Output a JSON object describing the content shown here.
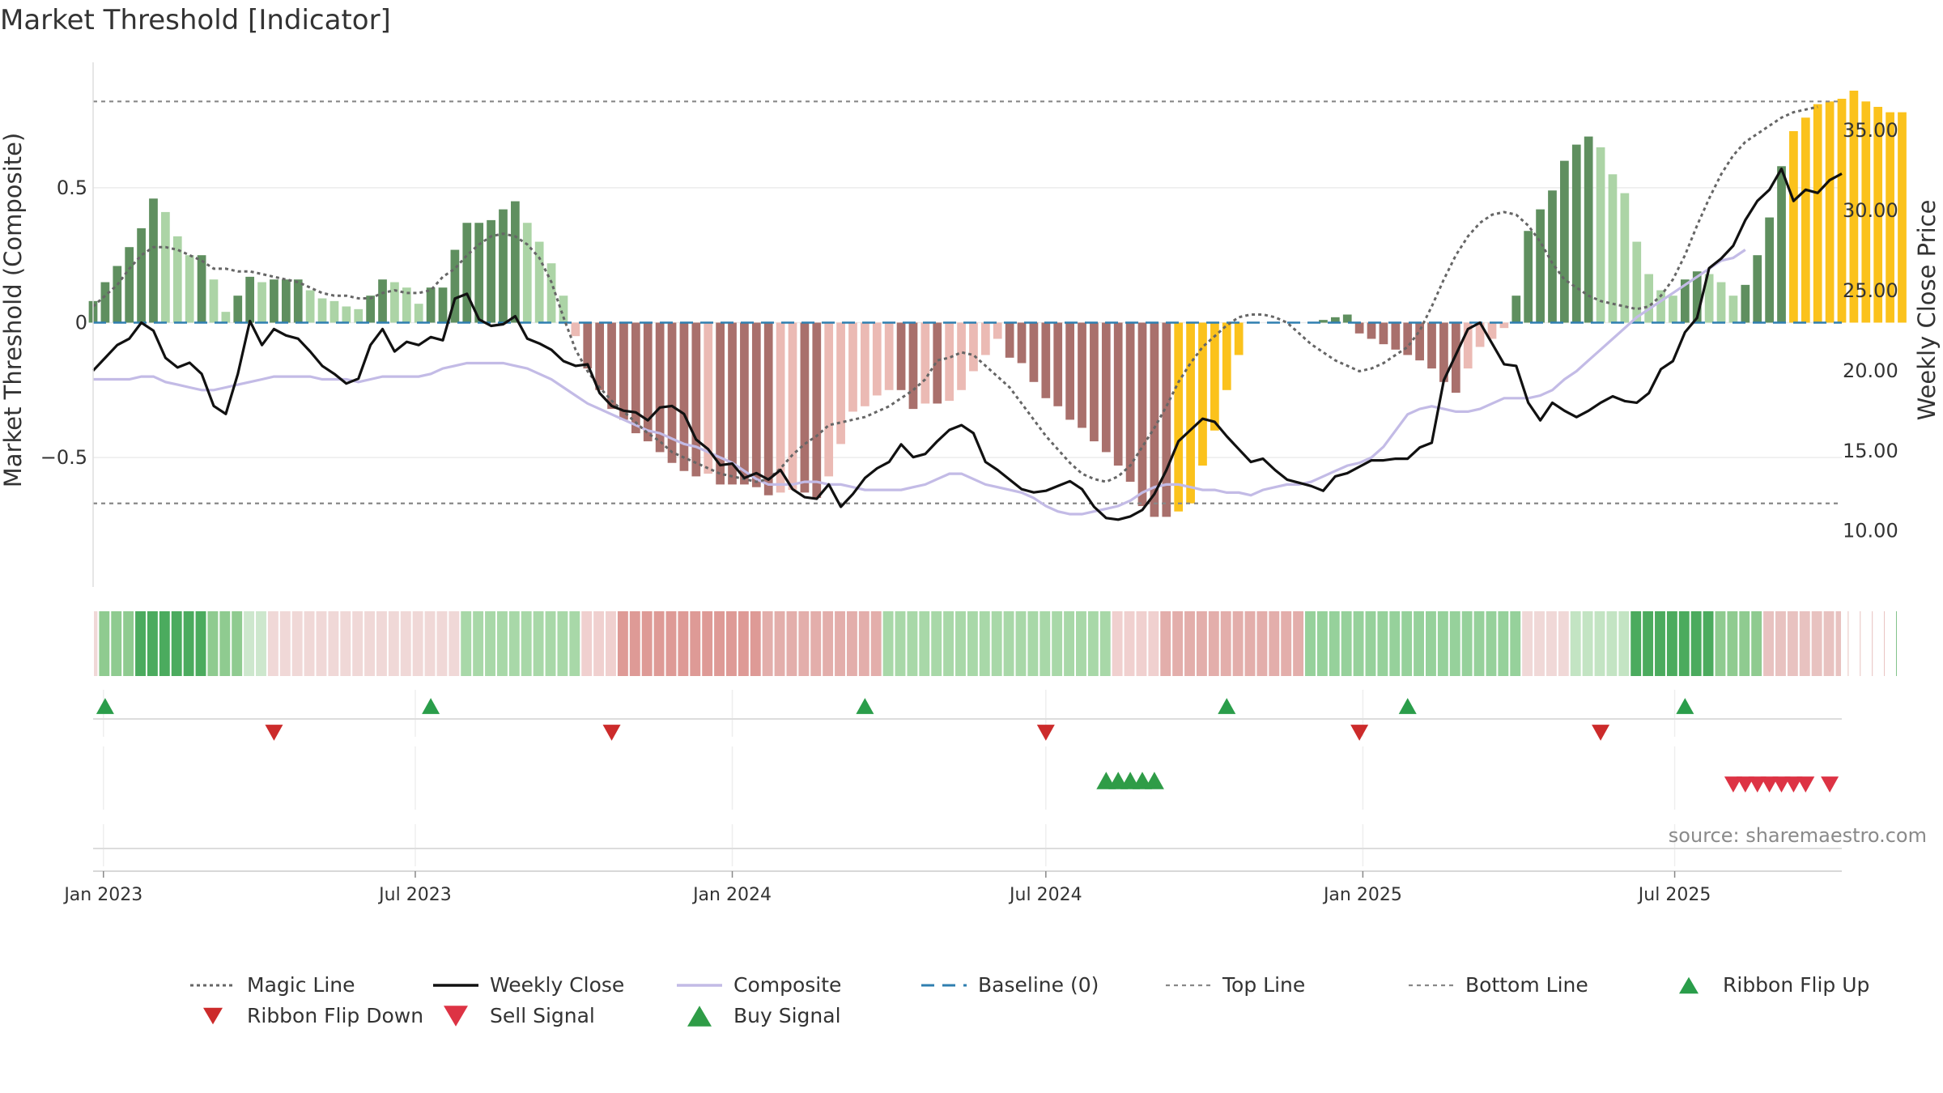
{
  "title": "Market Threshold [Indicator]",
  "source": "source: sharemaestro.com",
  "colors": {
    "bar_pos_strong": "#5f8f5f",
    "bar_pos_light": "#acd4a6",
    "bar_neg_strong": "#a9706c",
    "bar_neg_light": "#ebbab4",
    "bar_highlight": "#fbc21c",
    "magic_line": "#666666",
    "weekly_close": "#111111",
    "composite": "#c3bbe6",
    "baseline": "#2f7fb0",
    "threshold_lines": "#888888",
    "ribbon_flip_up": "#2a9d4a",
    "ribbon_flip_down": "#cc2b2b",
    "sell_signal": "#dd3344",
    "buy_signal": "#2f9c47"
  },
  "chart_data": {
    "type": "bar",
    "title": "Market Threshold [Indicator]",
    "ylabel": "Market Threshold (Composite)",
    "y2label": "Weekly Close Price",
    "ylim": [
      -0.95,
      0.95
    ],
    "y2lim": [
      7.0,
      39.0
    ],
    "yticks": [
      0.5,
      0,
      -0.5
    ],
    "ytick_labels": [
      "0.5",
      "0",
      "−0.5"
    ],
    "y2ticks": [
      35,
      30,
      25,
      20,
      15,
      10
    ],
    "y2tick_labels": [
      "35.00",
      "30.00",
      "25.00",
      "20.00",
      "15.00",
      "10.00"
    ],
    "x_start": "2022-12-26",
    "x_end": "2025-10-06",
    "xtick_dates": [
      "2023-01-01",
      "2023-07-01",
      "2024-01-01",
      "2024-07-01",
      "2025-01-01",
      "2025-07-01"
    ],
    "xtick_labels": [
      "Jan 2023",
      "Jul 2023",
      "Jan 2024",
      "Jul 2024",
      "Jan 2025",
      "Jul 2025"
    ],
    "top_line": 0.82,
    "bottom_line": -0.67,
    "baseline": 0,
    "composite_bars": [
      0.08,
      0.15,
      0.21,
      0.28,
      0.35,
      0.46,
      0.41,
      0.32,
      0.25,
      0.25,
      0.16,
      0.04,
      0.1,
      0.17,
      0.15,
      0.16,
      0.16,
      0.16,
      0.12,
      0.09,
      0.08,
      0.06,
      0.05,
      0.1,
      0.16,
      0.15,
      0.13,
      0.07,
      0.13,
      0.13,
      0.27,
      0.37,
      0.37,
      0.38,
      0.42,
      0.45,
      0.37,
      0.3,
      0.22,
      0.1,
      -0.05,
      -0.17,
      -0.25,
      -0.32,
      -0.36,
      -0.41,
      -0.44,
      -0.48,
      -0.52,
      -0.55,
      -0.57,
      -0.56,
      -0.6,
      -0.6,
      -0.6,
      -0.61,
      -0.64,
      -0.63,
      -0.62,
      -0.63,
      -0.65,
      -0.57,
      -0.45,
      -0.33,
      -0.31,
      -0.27,
      -0.25,
      -0.25,
      -0.32,
      -0.3,
      -0.3,
      -0.29,
      -0.25,
      -0.18,
      -0.12,
      -0.06,
      -0.13,
      -0.15,
      -0.22,
      -0.28,
      -0.31,
      -0.36,
      -0.39,
      -0.44,
      -0.48,
      -0.53,
      -0.59,
      -0.68,
      -0.72,
      -0.72,
      -0.7,
      -0.67,
      -0.53,
      -0.4,
      -0.25,
      -0.12,
      0,
      0,
      0,
      0,
      0,
      0,
      0.01,
      0.02,
      0.03,
      -0.04,
      -0.06,
      -0.08,
      -0.1,
      -0.12,
      -0.14,
      -0.17,
      -0.22,
      -0.26,
      -0.17,
      -0.09,
      -0.06,
      -0.02,
      0.1,
      0.34,
      0.42,
      0.49,
      0.6,
      0.66,
      0.69,
      0.65,
      0.55,
      0.48,
      0.3,
      0.18,
      0.12,
      0.1,
      0.16,
      0.19,
      0.18,
      0.15,
      0.1,
      0.14,
      0.25,
      0.39,
      0.58,
      0.71,
      0.76,
      0.81,
      0.82,
      0.83,
      0.86,
      0.82,
      0.8,
      0.78,
      0.78
    ],
    "series": [
      {
        "name": "Magic Line",
        "values": [
          0.06,
          0.1,
          0.14,
          0.2,
          0.25,
          0.28,
          0.28,
          0.27,
          0.25,
          0.23,
          0.2,
          0.2,
          0.19,
          0.19,
          0.18,
          0.17,
          0.16,
          0.15,
          0.13,
          0.11,
          0.1,
          0.1,
          0.09,
          0.09,
          0.11,
          0.12,
          0.11,
          0.11,
          0.12,
          0.17,
          0.2,
          0.25,
          0.29,
          0.32,
          0.33,
          0.32,
          0.29,
          0.24,
          0.15,
          0.02,
          -0.1,
          -0.18,
          -0.24,
          -0.29,
          -0.33,
          -0.37,
          -0.41,
          -0.44,
          -0.48,
          -0.5,
          -0.52,
          -0.54,
          -0.56,
          -0.57,
          -0.58,
          -0.59,
          -0.58,
          -0.54,
          -0.49,
          -0.45,
          -0.42,
          -0.38,
          -0.37,
          -0.36,
          -0.35,
          -0.33,
          -0.31,
          -0.28,
          -0.25,
          -0.21,
          -0.14,
          -0.13,
          -0.11,
          -0.12,
          -0.16,
          -0.2,
          -0.24,
          -0.3,
          -0.36,
          -0.42,
          -0.47,
          -0.52,
          -0.56,
          -0.58,
          -0.59,
          -0.57,
          -0.53,
          -0.46,
          -0.39,
          -0.31,
          -0.22,
          -0.15,
          -0.09,
          -0.05,
          -0.01,
          0.02,
          0.03,
          0.03,
          0.02,
          0.0,
          -0.04,
          -0.08,
          -0.11,
          -0.14,
          -0.16,
          -0.18,
          -0.17,
          -0.15,
          -0.12,
          -0.09,
          -0.03,
          0.06,
          0.16,
          0.25,
          0.32,
          0.37,
          0.4,
          0.41,
          0.4,
          0.36,
          0.3,
          0.22,
          0.16,
          0.13,
          0.1,
          0.08,
          0.07,
          0.06,
          0.05,
          0.06,
          0.1,
          0.16,
          0.25,
          0.36,
          0.46,
          0.55,
          0.62,
          0.67,
          0.7,
          0.73,
          0.76,
          0.78,
          0.79,
          0.8
        ]
      },
      {
        "name": "Weekly Close",
        "values": [
          20.0,
          20.8,
          21.6,
          22.0,
          23.0,
          22.5,
          20.8,
          20.2,
          20.5,
          19.8,
          17.8,
          17.3,
          19.8,
          23.1,
          21.6,
          22.6,
          22.2,
          22.0,
          21.2,
          20.3,
          19.8,
          19.2,
          19.5,
          21.6,
          22.6,
          21.2,
          21.8,
          21.6,
          22.1,
          21.9,
          24.5,
          24.8,
          23.2,
          22.8,
          22.9,
          23.4,
          22.0,
          21.7,
          21.3,
          20.6,
          20.3,
          20.4,
          18.6,
          17.8,
          17.5,
          17.4,
          16.9,
          17.7,
          17.8,
          17.3,
          15.7,
          15.1,
          14.1,
          14.2,
          13.3,
          13.6,
          13.2,
          13.8,
          12.6,
          12.1,
          12.0,
          12.9,
          11.5,
          12.3,
          13.3,
          13.9,
          14.3,
          15.4,
          14.6,
          14.8,
          15.6,
          16.3,
          16.6,
          16.1,
          14.3,
          13.8,
          13.2,
          12.6,
          12.4,
          12.5,
          12.8,
          13.1,
          12.6,
          11.5,
          10.8,
          10.7,
          10.9,
          11.3,
          12.3,
          13.8,
          15.6,
          16.3,
          17.0,
          16.8,
          15.9,
          15.1,
          14.3,
          14.5,
          13.8,
          13.2,
          13.0,
          12.8,
          12.5,
          13.4,
          13.6,
          14.0,
          14.4,
          14.4,
          14.5,
          14.5,
          15.2,
          15.5,
          19.4,
          21.0,
          22.6,
          23.0,
          21.7,
          20.4,
          20.3,
          18.0,
          16.9,
          18.0,
          17.5,
          17.1,
          17.5,
          18.0,
          18.4,
          18.1,
          18.0,
          18.6,
          20.1,
          20.6,
          22.4,
          23.3,
          26.4,
          27.0,
          27.8,
          29.4,
          30.6,
          31.3,
          32.6,
          30.6,
          31.3,
          31.1,
          31.9,
          32.3
        ]
      },
      {
        "name": "Composite",
        "values": [
          -0.21,
          -0.21,
          -0.21,
          -0.21,
          -0.2,
          -0.2,
          -0.22,
          -0.23,
          -0.24,
          -0.25,
          -0.25,
          -0.24,
          -0.23,
          -0.22,
          -0.21,
          -0.2,
          -0.2,
          -0.2,
          -0.2,
          -0.21,
          -0.21,
          -0.21,
          -0.22,
          -0.21,
          -0.2,
          -0.2,
          -0.2,
          -0.2,
          -0.19,
          -0.17,
          -0.16,
          -0.15,
          -0.15,
          -0.15,
          -0.15,
          -0.16,
          -0.17,
          -0.19,
          -0.21,
          -0.24,
          -0.27,
          -0.3,
          -0.32,
          -0.34,
          -0.36,
          -0.38,
          -0.4,
          -0.41,
          -0.43,
          -0.45,
          -0.46,
          -0.48,
          -0.5,
          -0.52,
          -0.55,
          -0.58,
          -0.6,
          -0.6,
          -0.6,
          -0.59,
          -0.59,
          -0.6,
          -0.6,
          -0.61,
          -0.62,
          -0.62,
          -0.62,
          -0.62,
          -0.61,
          -0.6,
          -0.58,
          -0.56,
          -0.56,
          -0.58,
          -0.6,
          -0.61,
          -0.62,
          -0.63,
          -0.65,
          -0.68,
          -0.7,
          -0.71,
          -0.71,
          -0.7,
          -0.69,
          -0.68,
          -0.66,
          -0.63,
          -0.61,
          -0.6,
          -0.6,
          -0.61,
          -0.62,
          -0.62,
          -0.63,
          -0.63,
          -0.64,
          -0.62,
          -0.61,
          -0.6,
          -0.6,
          -0.59,
          -0.57,
          -0.55,
          -0.53,
          -0.52,
          -0.5,
          -0.46,
          -0.4,
          -0.34,
          -0.32,
          -0.31,
          -0.32,
          -0.33,
          -0.33,
          -0.32,
          -0.3,
          -0.28,
          -0.28,
          -0.28,
          -0.27,
          -0.25,
          -0.21,
          -0.18,
          -0.14,
          -0.1,
          -0.06,
          -0.02,
          0.02,
          0.05,
          0.08,
          0.11,
          0.14,
          0.17,
          0.2,
          0.23,
          0.24,
          0.27
        ]
      },
      {
        "name": "Baseline (0)"
      },
      {
        "name": "Top Line"
      },
      {
        "name": "Bottom Line"
      },
      {
        "name": "Ribbon Flip Up",
        "dates": [
          "2023-01-02",
          "2023-07-10",
          "2024-03-18",
          "2024-10-14",
          "2025-01-27",
          "2025-07-07"
        ]
      },
      {
        "name": "Ribbon Flip Down",
        "dates": [
          "2023-04-10",
          "2023-10-23",
          "2024-07-01",
          "2024-12-30",
          "2025-05-19"
        ]
      },
      {
        "name": "Sell Signal",
        "dates": [
          "2025-08-04",
          "2025-08-11",
          "2025-08-18",
          "2025-08-25",
          "2025-09-01",
          "2025-09-08",
          "2025-09-15",
          "2025-09-29"
        ]
      },
      {
        "name": "Buy Signal",
        "dates": [
          "2024-08-05",
          "2024-08-12",
          "2024-08-19",
          "2024-08-26",
          "2024-09-02"
        ]
      }
    ],
    "highlight_ranges": [
      [
        90,
        96
      ],
      [
        141,
        150
      ]
    ],
    "ribbon": {
      "description_note": "",
      "segments": [
        {
          "weeks": 1,
          "color": "#f0d8d7"
        },
        {
          "weeks": 3,
          "color": "#8fcb90"
        },
        {
          "weeks": 6,
          "color": "#4bab5e"
        },
        {
          "weeks": 3,
          "color": "#8fcb90"
        },
        {
          "weeks": 2,
          "color": "#cde7cd"
        },
        {
          "weeks": 16,
          "color": "#f0d8d7"
        },
        {
          "weeks": 10,
          "color": "#a8d8a8"
        },
        {
          "weeks": 3,
          "color": "#f0d0cf"
        },
        {
          "weeks": 12,
          "color": "#de9a96"
        },
        {
          "weeks": 10,
          "color": "#e3aeab"
        },
        {
          "weeks": 19,
          "color": "#a8d8a8"
        },
        {
          "weeks": 4,
          "color": "#f0d0cf"
        },
        {
          "weeks": 12,
          "color": "#e3aeab"
        },
        {
          "weeks": 18,
          "color": "#96d19b"
        },
        {
          "weeks": 4,
          "color": "#f0d8d7"
        },
        {
          "weeks": 5,
          "color": "#c3e4c3"
        },
        {
          "weeks": 7,
          "color": "#4bab5e"
        },
        {
          "weeks": 4,
          "color": "#8fcb90"
        },
        {
          "weeks": 11,
          "color": "#e8c2c0"
        },
        {
          "weeks": 12,
          "color": "#82c38a"
        }
      ]
    }
  },
  "legend": [
    {
      "label": "Magic Line",
      "kind": "dotted",
      "color": "#666666"
    },
    {
      "label": "Weekly Close",
      "kind": "solid",
      "color": "#111111"
    },
    {
      "label": "Composite",
      "kind": "solid",
      "color": "#c3bbe6"
    },
    {
      "label": "Baseline (0)",
      "kind": "dashed",
      "color": "#2f7fb0"
    },
    {
      "label": "Top Line",
      "kind": "fine-dash",
      "color": "#888888"
    },
    {
      "label": "Bottom Line",
      "kind": "fine-dash",
      "color": "#888888"
    },
    {
      "label": "Ribbon Flip Up",
      "kind": "tri-up",
      "color": "#2a9d4a"
    },
    {
      "label": "Ribbon Flip Down",
      "kind": "tri-down",
      "color": "#cc2b2b"
    },
    {
      "label": "Sell Signal",
      "kind": "tri-down-big",
      "color": "#dd3344"
    },
    {
      "label": "Buy Signal",
      "kind": "tri-up-big",
      "color": "#2f9c47"
    }
  ]
}
